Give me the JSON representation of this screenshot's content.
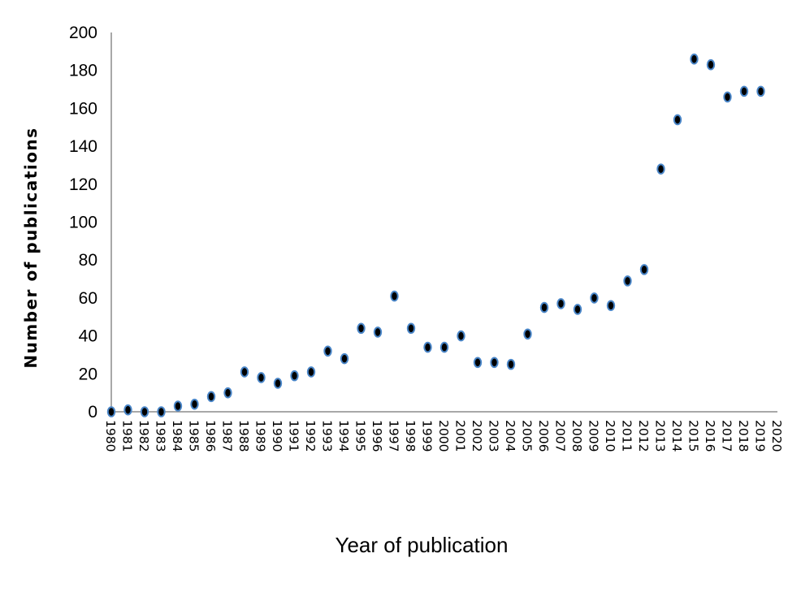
{
  "chart_data": {
    "type": "scatter",
    "title": "",
    "xlabel": "Year of publication",
    "ylabel": "Number of publications",
    "ylim": [
      0,
      200
    ],
    "yticks": [
      0,
      20,
      40,
      60,
      80,
      100,
      120,
      140,
      160,
      180,
      200
    ],
    "grid": false,
    "legend": null,
    "categories": [
      "1980",
      "1981",
      "1982",
      "1983",
      "1984",
      "1985",
      "1986",
      "1987",
      "1988",
      "1989",
      "1990",
      "1991",
      "1992",
      "1993",
      "1994",
      "1995",
      "1996",
      "1997",
      "1998",
      "1999",
      "2000",
      "2001",
      "2002",
      "2003",
      "2004",
      "2005",
      "2006",
      "2007",
      "2008",
      "2009",
      "2010",
      "2011",
      "2012",
      "2013",
      "2014",
      "2015",
      "2016",
      "2017",
      "2018",
      "2019",
      "2020"
    ],
    "series": [
      {
        "name": "Number of publications",
        "values": [
          0,
          1,
          0,
          0,
          3,
          4,
          8,
          10,
          21,
          18,
          15,
          19,
          21,
          32,
          28,
          44,
          42,
          61,
          44,
          34,
          34,
          40,
          26,
          26,
          25,
          41,
          55,
          57,
          54,
          60,
          56,
          69,
          75,
          128,
          154,
          186,
          183,
          166,
          169,
          169,
          null
        ]
      }
    ],
    "marker": {
      "fill": "#000000",
      "stroke": "#4a86c8"
    }
  }
}
